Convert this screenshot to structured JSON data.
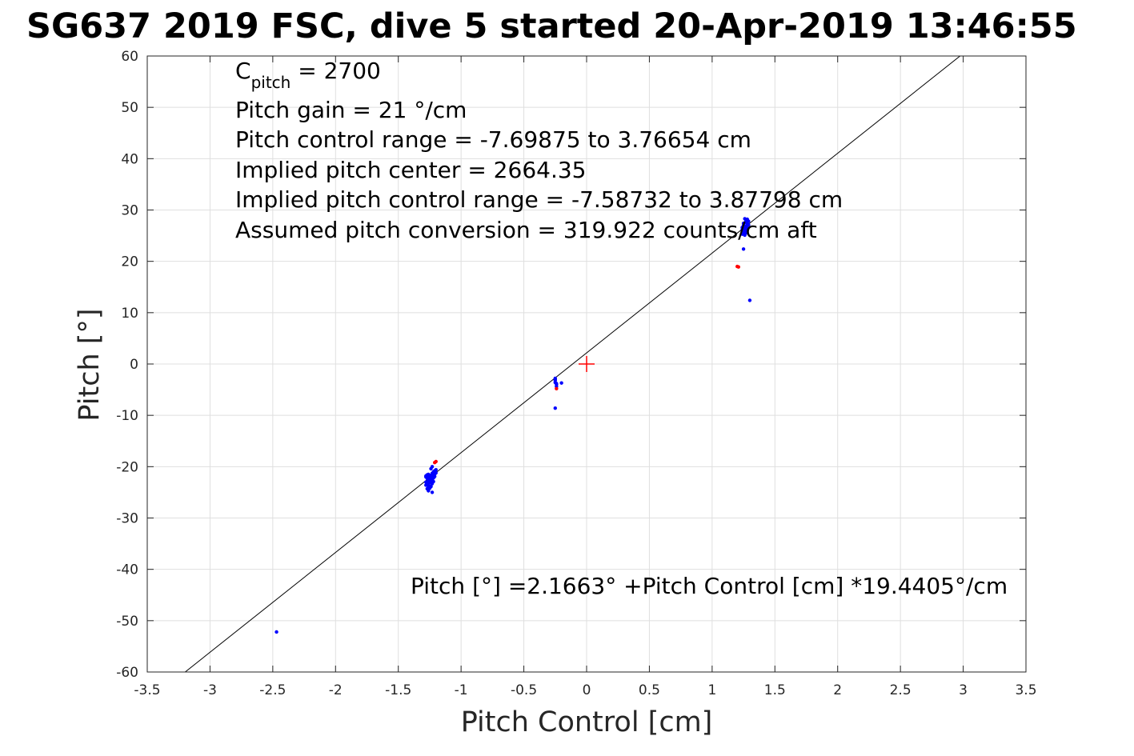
{
  "chart_data": {
    "type": "scatter",
    "title": "SG637 2019 FSC, dive 5 started 20-Apr-2019 13:46:55",
    "xlabel": "Pitch Control [cm]",
    "ylabel": "Pitch [°]",
    "xlim": [
      -3.5,
      3.5
    ],
    "ylim": [
      -60,
      60
    ],
    "xticks": [
      -3.5,
      -3,
      -2.5,
      -2,
      -1.5,
      -1,
      -0.5,
      0,
      0.5,
      1,
      1.5,
      2,
      2.5,
      3,
      3.5
    ],
    "yticks": [
      -60,
      -50,
      -40,
      -30,
      -20,
      -10,
      0,
      10,
      20,
      30,
      40,
      50,
      60
    ],
    "xtick_labels": [
      "-3.5",
      "-3",
      "-2.5",
      "-2",
      "-1.5",
      "-1",
      "-0.5",
      "0",
      "0.5",
      "1",
      "1.5",
      "2",
      "2.5",
      "3",
      "3.5"
    ],
    "ytick_labels": [
      "-60",
      "-50",
      "-40",
      "-30",
      "-20",
      "-10",
      "0",
      "10",
      "20",
      "30",
      "40",
      "50",
      "60"
    ],
    "grid": true,
    "fit_line": {
      "intercept": 2.1663,
      "slope": 19.4405,
      "color": "#000000"
    },
    "center_marker": {
      "x": 0,
      "y": 0,
      "color": "#ff0000"
    },
    "annotations": {
      "c_pitch_main": "C",
      "c_pitch_sub": "pitch",
      "c_pitch_value": " = 2700",
      "pitch_gain": "Pitch gain = 21 °/cm",
      "control_range": "Pitch control range = -7.69875 to 3.76654 cm",
      "implied_center": "Implied pitch center = 2664.35",
      "implied_range": "Implied pitch control range = -7.58732 to 3.87798 cm",
      "conversion": "Assumed pitch conversion = 319.922 counts/cm aft",
      "fit_equation": "Pitch [°] =2.1663° +Pitch Control [cm] *19.4405°/cm"
    },
    "series": [
      {
        "color": "#0000ff",
        "x": [
          -1.28,
          -1.27,
          -1.26,
          -1.25,
          -1.24,
          -1.23,
          -1.22,
          -1.21,
          -1.2,
          -1.28,
          -1.27,
          -1.26,
          -1.25,
          -1.24,
          -1.23,
          -1.22,
          -1.21,
          -1.26,
          -1.25,
          -1.24,
          -1.23,
          -1.22,
          -1.28,
          -1.27,
          -1.26,
          -1.25,
          -1.24,
          -1.23,
          -1.22,
          -1.21,
          -1.2,
          -1.27,
          -1.26,
          -1.24,
          -1.22,
          -1.28,
          -1.26,
          -1.24,
          -1.23,
          -1.26,
          -1.23,
          -0.25,
          -0.25,
          -0.25,
          -0.24,
          -0.24,
          -0.25,
          -0.24,
          -0.2,
          -0.25,
          1.24,
          1.25,
          1.26,
          1.27,
          1.28,
          1.29,
          1.24,
          1.25,
          1.26,
          1.27,
          1.28,
          1.25,
          1.26,
          1.27,
          1.28,
          1.29,
          1.24,
          1.25,
          1.26,
          1.27,
          1.28,
          1.26,
          1.27,
          1.25,
          1.3,
          -2.47
        ],
        "y": [
          -22,
          -22.3,
          -22.6,
          -22.9,
          -22.4,
          -22.2,
          -21.8,
          -21.5,
          -21.2,
          -23,
          -23.2,
          -23.5,
          -23.1,
          -22.8,
          -22.6,
          -22.2,
          -21.9,
          -24,
          -24.2,
          -23.8,
          -23.3,
          -22.9,
          -21.8,
          -21.6,
          -21.9,
          -22.1,
          -21.7,
          -21.3,
          -21,
          -20.8,
          -20.6,
          -24.3,
          -22.7,
          -23.9,
          -21.3,
          -23.6,
          -24.7,
          -20.4,
          -20,
          -21.5,
          -25,
          -2.8,
          -3.2,
          -3.6,
          -4,
          -4.4,
          -3,
          -3.8,
          -3.7,
          -8.6,
          25.3,
          25.8,
          26.3,
          26.8,
          27.3,
          27.8,
          26.6,
          27,
          27.5,
          28,
          28.2,
          25.6,
          25.1,
          26.1,
          26.9,
          27.1,
          26.2,
          27.4,
          25.9,
          25.5,
          26.4,
          28.3,
          27.7,
          22.4,
          12.4,
          -52.2
        ]
      },
      {
        "color": "#ff0000",
        "x": [
          -1.2,
          -1.21,
          -0.24,
          1.2,
          1.21
        ],
        "y": [
          -19,
          -19.2,
          -4.8,
          19,
          18.9
        ]
      }
    ]
  }
}
